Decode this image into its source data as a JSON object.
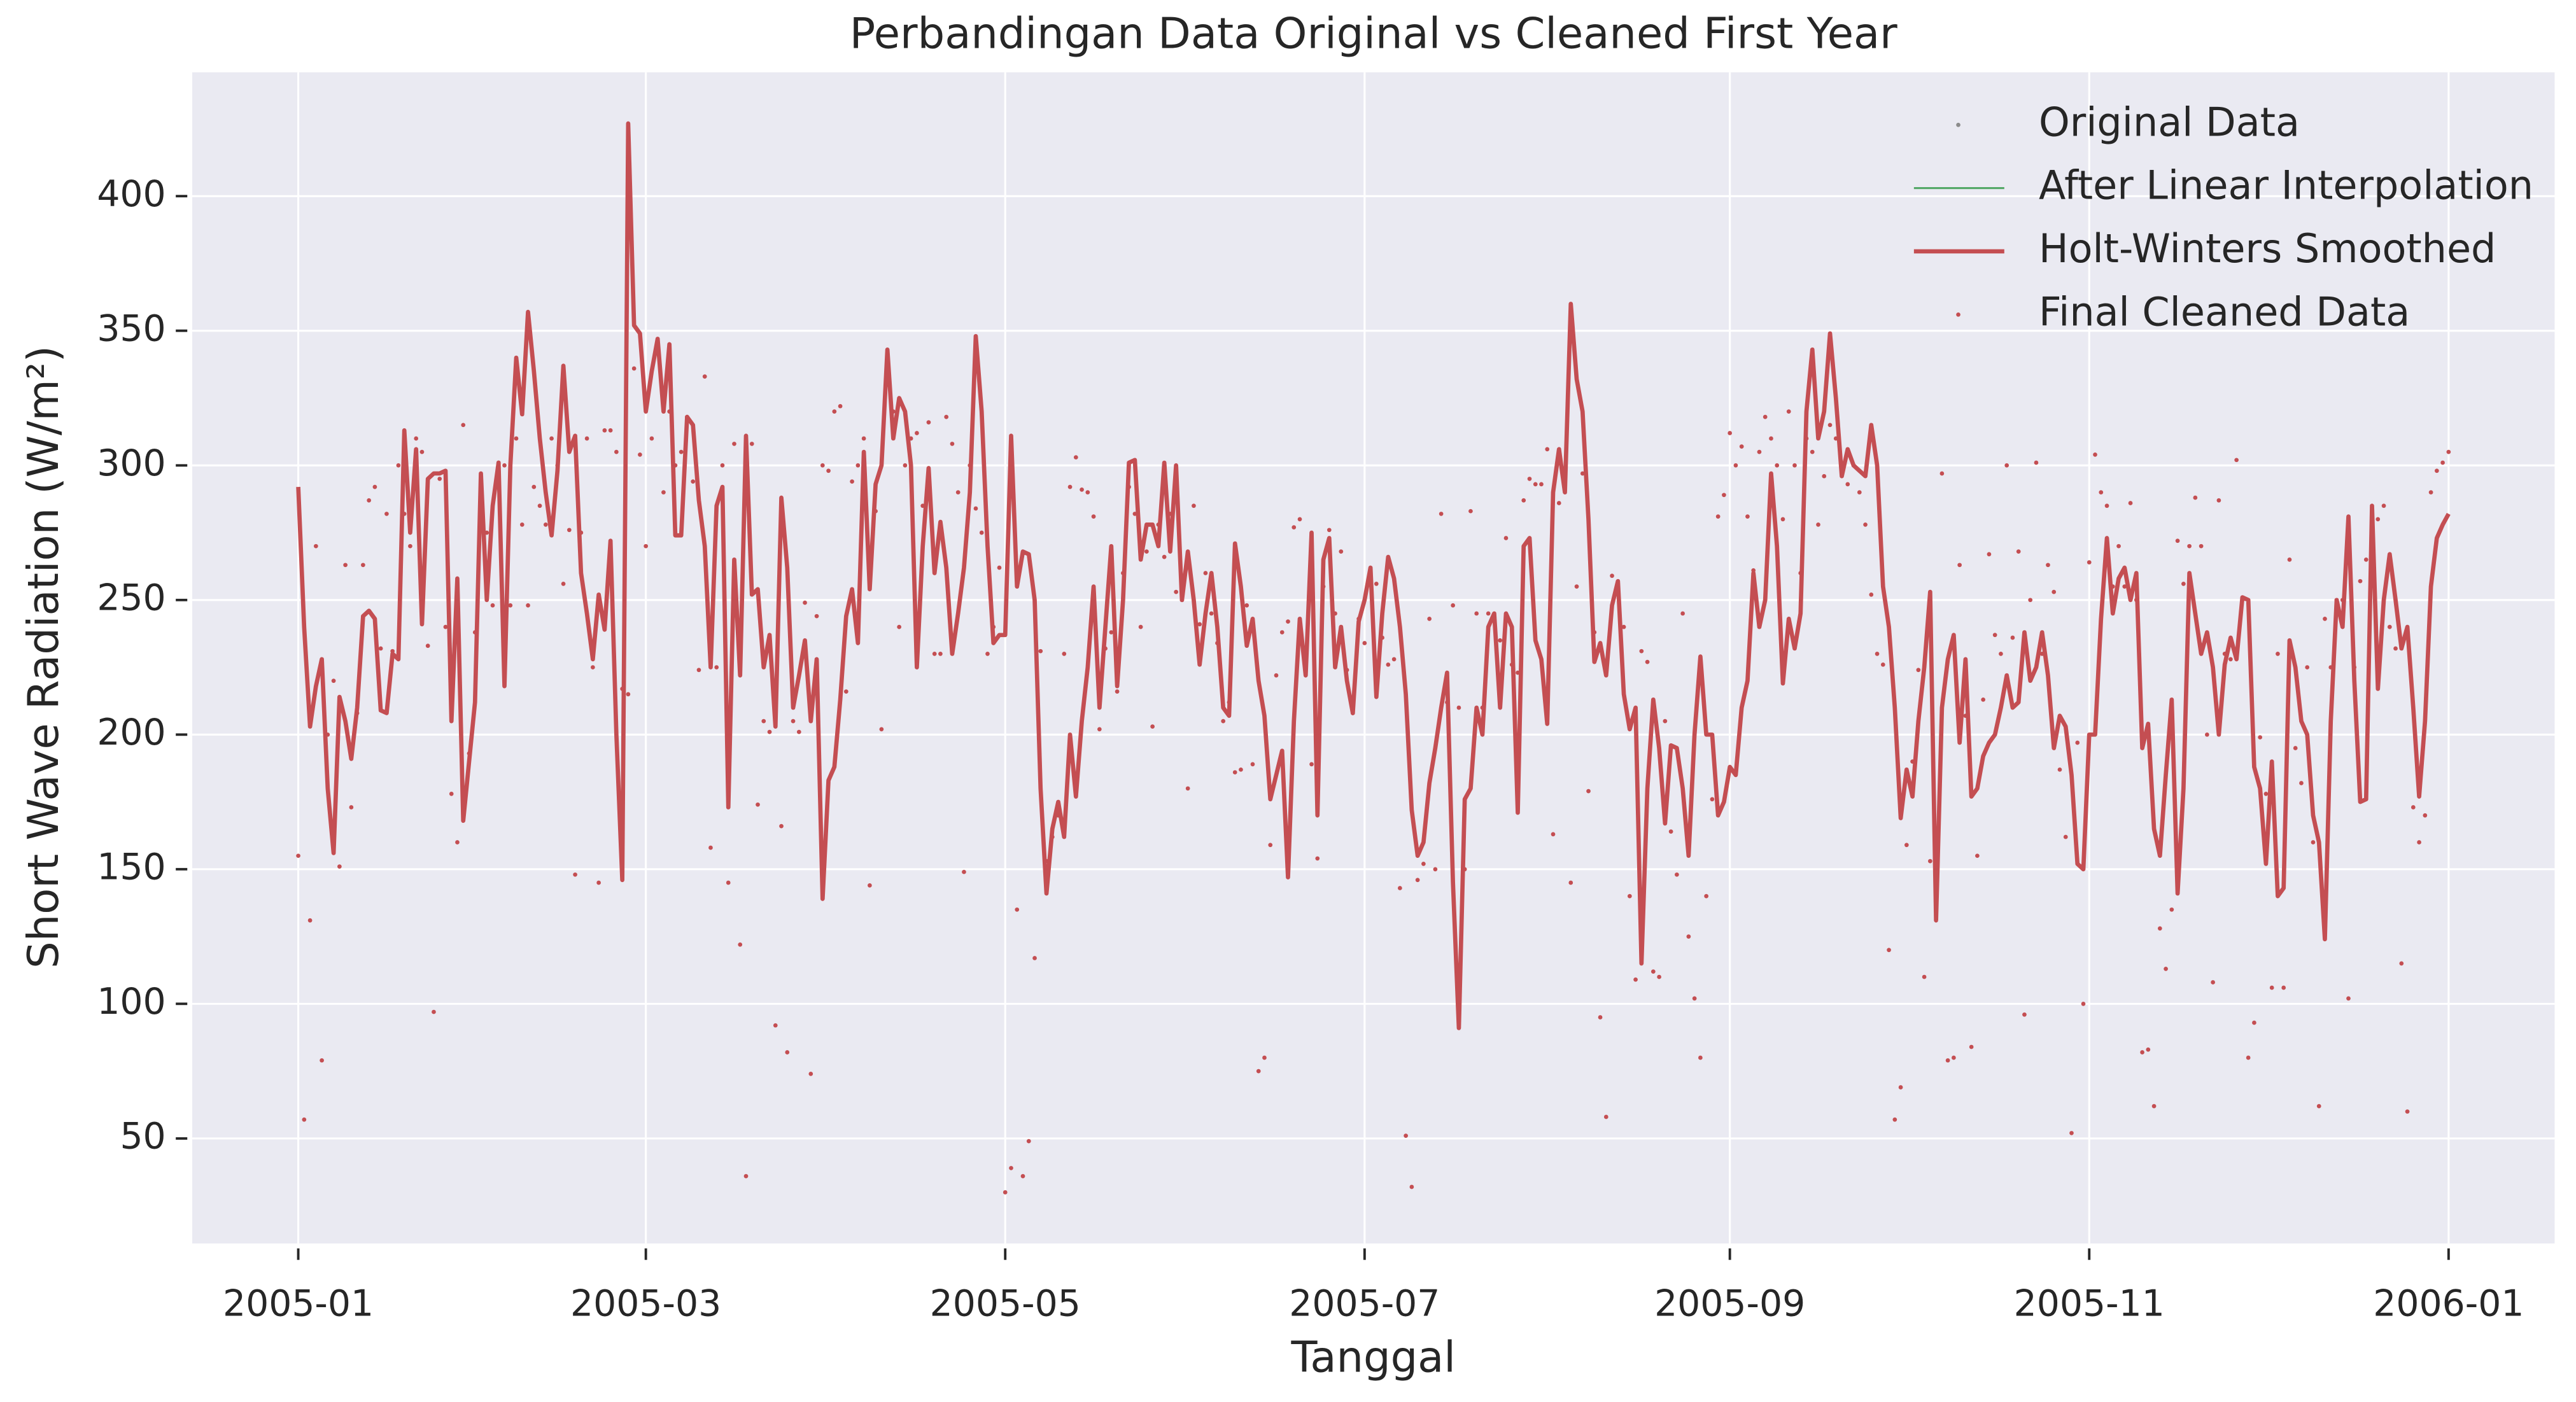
{
  "chart_data": {
    "type": "line",
    "title": "Perbandingan Data Original vs Cleaned First Year",
    "x_label": "Tanggal",
    "y_label": "Short Wave Radiation (W/m²)",
    "xlim": [
      -18,
      383
    ],
    "ylim": [
      11,
      446
    ],
    "xticks": [
      {
        "value": 0,
        "label": "2005-01"
      },
      {
        "value": 59,
        "label": "2005-03"
      },
      {
        "value": 120,
        "label": "2005-05"
      },
      {
        "value": 181,
        "label": "2005-07"
      },
      {
        "value": 243,
        "label": "2005-09"
      },
      {
        "value": 304,
        "label": "2005-11"
      },
      {
        "value": 365,
        "label": "2006-01"
      }
    ],
    "yticks": [
      50,
      100,
      150,
      200,
      250,
      300,
      350,
      400
    ],
    "grid": true,
    "legend": "upper right",
    "x": [
      0,
      1,
      2,
      3,
      4,
      5,
      6,
      7,
      8,
      9,
      10,
      11,
      12,
      13,
      14,
      15,
      16,
      17,
      18,
      19,
      20,
      21,
      22,
      23,
      24,
      25,
      26,
      27,
      28,
      29,
      30,
      31,
      32,
      33,
      34,
      35,
      36,
      37,
      38,
      39,
      40,
      41,
      42,
      43,
      44,
      45,
      46,
      47,
      48,
      49,
      50,
      51,
      52,
      53,
      54,
      55,
      56,
      57,
      58,
      59,
      60,
      61,
      62,
      63,
      64,
      65,
      66,
      67,
      68,
      69,
      70,
      71,
      72,
      73,
      74,
      75,
      76,
      77,
      78,
      79,
      80,
      81,
      82,
      83,
      84,
      85,
      86,
      87,
      88,
      89,
      90,
      91,
      92,
      93,
      94,
      95,
      96,
      97,
      98,
      99,
      100,
      101,
      102,
      103,
      104,
      105,
      106,
      107,
      108,
      109,
      110,
      111,
      112,
      113,
      114,
      115,
      116,
      117,
      118,
      119,
      120,
      121,
      122,
      123,
      124,
      125,
      126,
      127,
      128,
      129,
      130,
      131,
      132,
      133,
      134,
      135,
      136,
      137,
      138,
      139,
      140,
      141,
      142,
      143,
      144,
      145,
      146,
      147,
      148,
      149,
      150,
      151,
      152,
      153,
      154,
      155,
      156,
      157,
      158,
      159,
      160,
      161,
      162,
      163,
      164,
      165,
      166,
      167,
      168,
      169,
      170,
      171,
      172,
      173,
      174,
      175,
      176,
      177,
      178,
      179,
      180,
      181,
      182,
      183,
      184,
      185,
      186,
      187,
      188,
      189,
      190,
      191,
      192,
      193,
      194,
      195,
      196,
      197,
      198,
      199,
      200,
      201,
      202,
      203,
      204,
      205,
      206,
      207,
      208,
      209,
      210,
      211,
      212,
      213,
      214,
      215,
      216,
      217,
      218,
      219,
      220,
      221,
      222,
      223,
      224,
      225,
      226,
      227,
      228,
      229,
      230,
      231,
      232,
      233,
      234,
      235,
      236,
      237,
      238,
      239,
      240,
      241,
      242,
      243,
      244,
      245,
      246,
      247,
      248,
      249,
      250,
      251,
      252,
      253,
      254,
      255,
      256,
      257,
      258,
      259,
      260,
      261,
      262,
      263,
      264,
      265,
      266,
      267,
      268,
      269,
      270,
      271,
      272,
      273,
      274,
      275,
      276,
      277,
      278,
      279,
      280,
      281,
      282,
      283,
      284,
      285,
      286,
      287,
      288,
      289,
      290,
      291,
      292,
      293,
      294,
      295,
      296,
      297,
      298,
      299,
      300,
      301,
      302,
      303,
      304,
      305,
      306,
      307,
      308,
      309,
      310,
      311,
      312,
      313,
      314,
      315,
      316,
      317,
      318,
      319,
      320,
      321,
      322,
      323,
      324,
      325,
      326,
      327,
      328,
      329,
      330,
      331,
      332,
      333,
      334,
      335,
      336,
      337,
      338,
      339,
      340,
      341,
      342,
      343,
      344,
      345,
      346,
      347,
      348,
      349,
      350,
      351,
      352,
      353,
      354,
      355,
      356,
      357,
      358,
      359,
      360,
      361,
      362,
      363,
      364,
      365
    ],
    "series": [
      {
        "name": "Original Data",
        "color": "#8c8c8c",
        "style": "dots"
      },
      {
        "name": "After Linear Interpolation",
        "color": "#55a868",
        "style": "line"
      },
      {
        "name": "Holt-Winters Smoothed",
        "color": "#c44e52",
        "style": "line",
        "values": [
          292,
          240,
          203,
          218,
          228,
          180,
          156,
          214,
          205,
          191,
          210,
          244,
          246,
          243,
          209,
          208,
          230,
          228,
          313,
          275,
          306,
          241,
          295,
          297,
          297,
          298,
          205,
          258,
          168,
          190,
          212,
          297,
          250,
          285,
          301,
          218,
          300,
          340,
          319,
          357,
          335,
          310,
          290,
          274,
          298,
          337,
          305,
          311,
          260,
          245,
          228,
          252,
          239,
          272,
          200,
          146,
          427,
          352,
          349,
          320,
          335,
          347,
          320,
          345,
          274,
          274,
          318,
          315,
          287,
          270,
          225,
          285,
          292,
          173,
          265,
          222,
          311,
          252,
          254,
          225,
          237,
          203,
          288,
          262,
          210,
          222,
          235,
          205,
          228,
          139,
          183,
          188,
          213,
          244,
          254,
          234,
          305,
          254,
          293,
          300,
          343,
          310,
          325,
          320,
          300,
          225,
          270,
          299,
          260,
          279,
          262,
          230,
          245,
          262,
          290,
          348,
          320,
          270,
          234,
          237,
          237,
          311,
          255,
          268,
          267,
          250,
          180,
          141,
          165,
          175,
          162,
          200,
          177,
          205,
          225,
          255,
          210,
          240,
          270,
          218,
          250,
          301,
          302,
          265,
          278,
          278,
          270,
          301,
          268,
          300,
          250,
          268,
          250,
          226,
          245,
          260,
          240,
          210,
          207,
          271,
          255,
          233,
          243,
          220,
          207,
          176,
          185,
          194,
          147,
          205,
          243,
          222,
          275,
          170,
          265,
          273,
          225,
          240,
          220,
          208,
          242,
          250,
          262,
          214,
          245,
          266,
          258,
          240,
          215,
          172,
          155,
          160,
          182,
          195,
          210,
          223,
          145,
          91,
          176,
          180,
          210,
          200,
          240,
          245,
          210,
          245,
          240,
          171,
          270,
          273,
          235,
          228,
          204,
          290,
          306,
          290,
          360,
          332,
          320,
          280,
          227,
          234,
          222,
          248,
          257,
          215,
          202,
          210,
          115,
          180,
          213,
          195,
          167,
          196,
          195,
          180,
          155,
          200,
          229,
          200,
          200,
          170,
          175,
          188,
          185,
          210,
          220,
          260,
          240,
          250,
          297,
          270,
          219,
          243,
          232,
          245,
          320,
          343,
          310,
          320,
          349,
          325,
          296,
          306,
          300,
          298,
          296,
          315,
          300,
          255,
          240,
          210,
          169,
          187,
          177,
          205,
          225,
          253,
          131,
          210,
          228,
          237,
          197,
          228,
          177,
          180,
          192,
          197,
          200,
          210,
          222,
          210,
          212,
          238,
          220,
          225,
          238,
          222,
          195,
          207,
          203,
          185,
          152,
          150,
          200,
          200,
          243,
          273,
          245,
          258,
          262,
          250,
          260,
          195,
          204,
          165,
          155,
          185,
          213,
          141,
          180,
          260,
          245,
          230,
          238,
          225,
          200,
          226,
          236,
          228,
          251,
          250,
          188,
          180,
          152,
          190,
          140,
          143,
          235,
          225,
          205,
          200,
          170,
          160,
          124,
          205,
          250,
          240,
          281,
          220,
          175,
          176,
          285,
          217,
          250,
          267,
          250,
          232,
          240,
          210,
          177,
          205,
          255,
          273,
          278,
          282
        ]
      },
      {
        "name": "Final Cleaned Data",
        "color": "#c44e52",
        "style": "dots",
        "values": [
          155,
          57,
          131,
          270,
          79,
          200,
          220,
          151,
          263,
          173,
          208,
          263,
          287,
          292,
          232,
          282,
          231,
          300,
          282,
          270,
          310,
          305,
          233,
          97,
          295,
          240,
          178,
          160,
          315,
          193,
          238,
          291,
          275,
          248,
          301,
          300,
          248,
          310,
          278,
          248,
          292,
          285,
          278,
          310,
          300,
          256,
          276,
          148,
          275,
          310,
          225,
          145,
          313,
          313,
          305,
          217,
          215,
          336,
          304,
          270,
          310,
          345,
          290,
          320,
          300,
          305,
          318,
          294,
          224,
          333,
          158,
          225,
          300,
          145,
          308,
          122,
          36,
          308,
          174,
          205,
          201,
          92,
          166,
          82,
          205,
          201,
          249,
          74,
          244,
          300,
          298,
          320,
          322,
          216,
          294,
          300,
          310,
          144,
          283,
          202,
          330,
          320,
          240,
          300,
          310,
          312,
          285,
          316,
          230,
          230,
          318,
          308,
          290,
          149,
          300,
          284,
          275,
          230,
          240,
          262,
          30,
          39,
          135,
          36,
          49,
          117,
          231,
          153,
          162,
          170,
          230,
          292,
          303,
          291,
          290,
          281,
          202,
          232,
          238,
          216,
          260,
          292,
          282,
          240,
          268,
          203,
          278,
          266,
          282,
          253,
          250,
          180,
          285,
          241,
          260,
          245,
          234,
          205,
          212,
          186,
          187,
          248,
          189,
          75,
          80,
          159,
          222,
          238,
          242,
          277,
          280,
          232,
          189,
          154,
          255,
          276,
          245,
          268,
          224,
          208,
          243,
          234,
          260,
          256,
          236,
          226,
          228,
          143,
          51,
          32,
          146,
          152,
          243,
          150,
          282,
          212,
          248,
          210,
          150,
          283,
          245,
          210,
          245,
          244,
          235,
          273,
          226,
          223,
          287,
          295,
          293,
          293,
          306,
          163,
          286,
          293,
          145,
          255,
          297,
          179,
          238,
          95,
          58,
          259,
          256,
          240,
          140,
          109,
          231,
          227,
          112,
          110,
          205,
          164,
          148,
          245,
          125,
          102,
          80,
          140,
          176,
          281,
          289,
          312,
          300,
          307,
          281,
          261,
          305,
          318,
          310,
          300,
          280,
          320,
          300,
          260,
          310,
          305,
          278,
          296,
          315,
          310,
          300,
          293,
          300,
          290,
          278,
          252,
          230,
          226,
          120,
          57,
          69,
          159,
          190,
          224,
          110,
          153,
          153,
          297,
          79,
          80,
          263,
          207,
          84,
          155,
          213,
          267,
          237,
          230,
          300,
          236,
          268,
          96,
          250,
          301,
          230,
          263,
          253,
          187,
          162,
          52,
          197,
          100,
          264,
          304,
          290,
          285,
          255,
          270,
          255,
          286,
          250,
          82,
          83,
          62,
          128,
          113,
          135,
          272,
          256,
          270,
          288,
          270,
          200,
          108,
          287,
          230,
          228,
          302,
          250,
          80,
          93,
          199,
          178,
          106,
          230,
          106,
          265,
          195,
          182,
          225,
          160,
          62,
          243,
          225,
          250,
          250,
          102,
          225,
          257,
          265,
          260,
          280,
          285,
          240,
          232,
          115,
          60,
          173,
          160,
          170,
          290,
          298,
          301,
          305
        ]
      }
    ]
  }
}
